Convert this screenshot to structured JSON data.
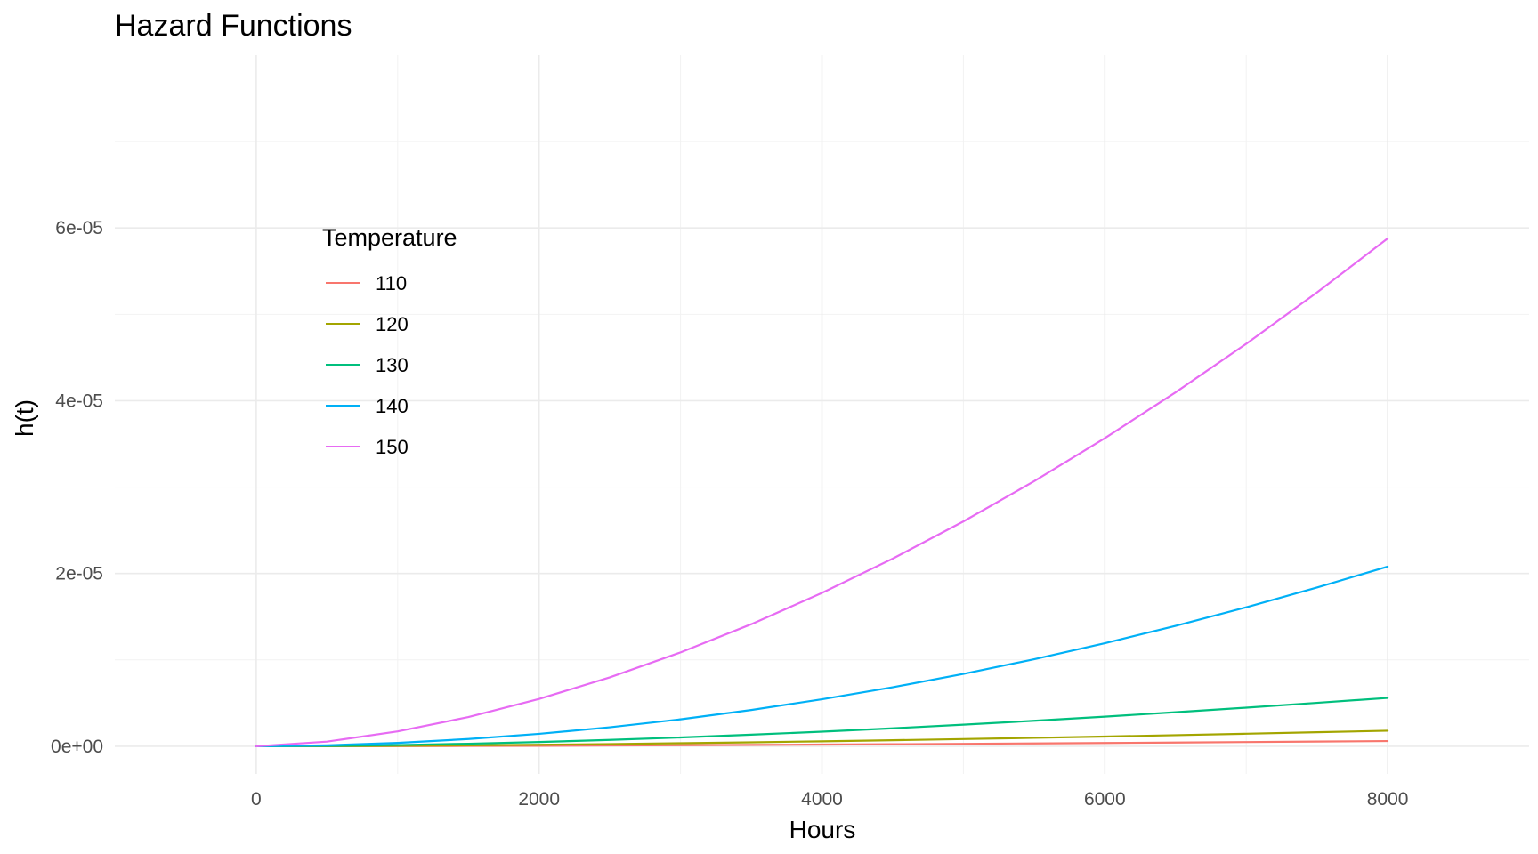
{
  "chart_data": {
    "type": "line",
    "title": "Hazard Functions",
    "xlabel": "Hours",
    "ylabel": "h(t)",
    "xlim": [
      -1000,
      9000
    ],
    "ylim": [
      -3.2e-06,
      8e-05
    ],
    "x_ticks": [
      0,
      2000,
      4000,
      6000,
      8000
    ],
    "x_tick_labels": [
      "0",
      "2000",
      "4000",
      "6000",
      "8000"
    ],
    "x_minor_ticks": [
      1000,
      3000,
      5000,
      7000
    ],
    "y_ticks": [
      0,
      2e-05,
      4e-05,
      6e-05
    ],
    "y_tick_labels": [
      "0e+00",
      "2e-05",
      "4e-05",
      "6e-05"
    ],
    "y_minor_ticks": [
      1e-05,
      3e-05,
      5e-05,
      7e-05
    ],
    "grid": true,
    "legend": {
      "title": "Temperature",
      "placement": "inside-top-left"
    },
    "x": [
      0,
      500,
      1000,
      1500,
      2000,
      2500,
      3000,
      3500,
      4000,
      4500,
      5000,
      5500,
      6000,
      6500,
      7000,
      7500,
      8000
    ],
    "series": [
      {
        "name": "110",
        "color": "#F8766D",
        "values": [
          0,
          5e-09,
          1.7e-08,
          3.6e-08,
          6e-08,
          8.8e-08,
          1.2e-07,
          1.56e-07,
          1.95e-07,
          2.37e-07,
          2.82e-07,
          3.3e-07,
          3.8e-07,
          4.33e-07,
          4.88e-07,
          5.46e-07,
          6.05e-07
        ]
      },
      {
        "name": "120",
        "color": "#A3A500",
        "values": [
          0,
          1.5e-08,
          5e-08,
          1.05e-07,
          1.75e-07,
          2.58e-07,
          3.53e-07,
          4.59e-07,
          5.75e-07,
          7e-07,
          8.35e-07,
          9.77e-07,
          1.128e-06,
          1.286e-06,
          1.451e-06,
          1.624e-06,
          1.8e-06
        ]
      },
      {
        "name": "130",
        "color": "#00BF7D",
        "values": [
          0,
          4.2e-08,
          1.42e-07,
          2.95e-07,
          4.95e-07,
          7.38e-07,
          1.02e-06,
          1.34e-06,
          1.69e-06,
          2.08e-06,
          2.5e-06,
          2.95e-06,
          3.43e-06,
          3.94e-06,
          4.47e-06,
          5.03e-06,
          5.6e-06
        ]
      },
      {
        "name": "140",
        "color": "#00B0F6",
        "values": [
          0,
          1.1e-07,
          3.9e-07,
          8.4e-07,
          1.44e-06,
          2.2e-06,
          3.12e-06,
          4.2e-06,
          5.44e-06,
          6.83e-06,
          8.38e-06,
          1.008e-05,
          1.193e-05,
          1.394e-05,
          1.609e-05,
          1.838e-05,
          2.08e-05
        ]
      },
      {
        "name": "150",
        "color": "#E76BF3",
        "values": [
          0,
          5.4e-07,
          1.72e-06,
          3.38e-06,
          5.48e-06,
          7.98e-06,
          1.087e-05,
          1.413e-05,
          1.775e-05,
          2.172e-05,
          2.603e-05,
          3.068e-05,
          3.566e-05,
          4.097e-05,
          4.659e-05,
          5.253e-05,
          5.879e-05
        ]
      }
    ]
  }
}
